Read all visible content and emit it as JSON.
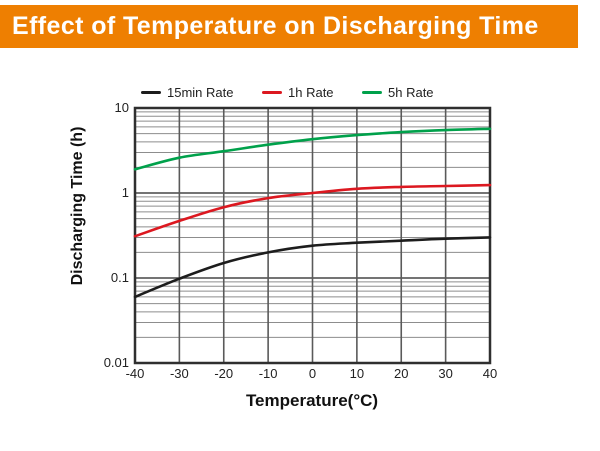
{
  "colors": {
    "banner_bg": "#EE7F01",
    "banner_text": "#FFFFFF",
    "plot_border": "#2F2F2F",
    "grid_minor": "#8D8D8D",
    "grid_major": "#464646",
    "grid_vertical": "#5A5A5A",
    "series_15min": "#1D1D1D",
    "series_1h": "#DC1820",
    "series_5h": "#00A14B"
  },
  "chart_data": {
    "type": "line",
    "title": "Effect of Temperature on Discharging Time",
    "xlabel": "Temperature(°C)",
    "ylabel": "Discharging Time (h)",
    "x_scale": "linear",
    "y_scale": "log",
    "xlim": [
      -40,
      40
    ],
    "ylim": [
      0.01,
      10
    ],
    "x_ticks": [
      "-40",
      "-30",
      "-20",
      "-10",
      "0",
      "10",
      "20",
      "30",
      "40"
    ],
    "y_ticks": [
      "10",
      "1",
      "0.1",
      "0.01"
    ],
    "y_tick_values": [
      10,
      1,
      0.1,
      0.01
    ],
    "grid": "horizontal log minors (2-9 each decade) + vertical lines every 10°C",
    "legend_position": "top",
    "x": [
      -40,
      -30,
      -20,
      -10,
      0,
      10,
      20,
      30,
      40
    ],
    "series": [
      {
        "name": "15min Rate",
        "color_key": "series_15min",
        "values": [
          0.06,
          0.098,
          0.15,
          0.2,
          0.24,
          0.26,
          0.275,
          0.29,
          0.3
        ]
      },
      {
        "name": "1h Rate",
        "color_key": "series_1h",
        "values": [
          0.31,
          0.47,
          0.68,
          0.87,
          1.0,
          1.12,
          1.18,
          1.21,
          1.24
        ]
      },
      {
        "name": "5h Rate",
        "color_key": "series_5h",
        "values": [
          1.9,
          2.6,
          3.1,
          3.7,
          4.3,
          4.8,
          5.2,
          5.5,
          5.7
        ]
      }
    ]
  }
}
